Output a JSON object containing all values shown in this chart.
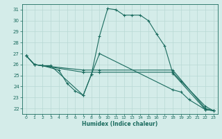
{
  "xlabel": "Humidex (Indice chaleur)",
  "bg_color": "#d4ece9",
  "line_color": "#1a6b5e",
  "grid_color": "#b8d8d4",
  "xlim": [
    -0.5,
    23.5
  ],
  "ylim": [
    21.5,
    31.5
  ],
  "xticks": [
    0,
    1,
    2,
    3,
    4,
    5,
    6,
    7,
    8,
    9,
    10,
    11,
    12,
    13,
    14,
    15,
    16,
    17,
    18,
    19,
    20,
    21,
    22,
    23
  ],
  "yticks": [
    22,
    23,
    24,
    25,
    26,
    27,
    28,
    29,
    30,
    31
  ],
  "lines": [
    {
      "x": [
        0,
        1,
        2,
        3,
        7,
        8,
        9,
        10,
        11,
        12,
        13,
        14,
        15,
        16,
        17,
        18,
        22,
        23
      ],
      "y": [
        26.8,
        26.0,
        25.9,
        25.9,
        23.2,
        25.1,
        28.6,
        31.1,
        31.0,
        30.5,
        30.5,
        30.5,
        30.0,
        28.8,
        27.7,
        25.2,
        21.9,
        21.8
      ]
    },
    {
      "x": [
        0,
        1,
        2,
        7,
        9,
        18,
        22,
        23
      ],
      "y": [
        26.8,
        26.0,
        25.9,
        25.5,
        25.5,
        25.5,
        22.0,
        21.8
      ]
    },
    {
      "x": [
        0,
        1,
        2,
        7,
        9,
        18,
        19,
        22,
        23
      ],
      "y": [
        26.8,
        26.0,
        25.9,
        25.3,
        25.3,
        25.3,
        24.5,
        22.2,
        21.8
      ]
    },
    {
      "x": [
        0,
        1,
        2,
        4,
        5,
        6,
        7,
        8,
        9,
        18,
        19,
        20,
        22,
        23
      ],
      "y": [
        26.8,
        26.0,
        25.9,
        25.5,
        24.3,
        23.6,
        23.2,
        25.1,
        27.0,
        23.7,
        23.5,
        22.8,
        21.9,
        21.8
      ]
    }
  ]
}
